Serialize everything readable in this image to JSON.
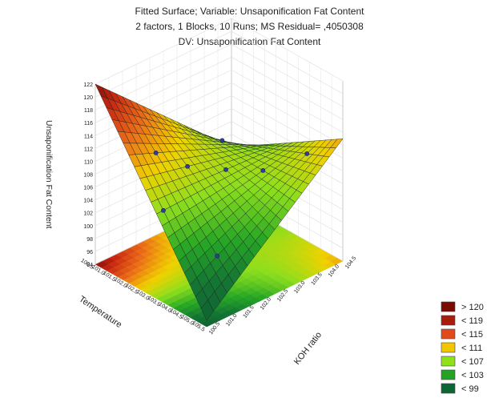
{
  "chart_data": {
    "type": "surface3d",
    "title_lines": [
      "Fitted Surface; Variable: Unsaponification Fat Content",
      "2 factors, 1 Blocks, 10 Runs; MS Residual= ,4050308",
      "DV: Unsaponification Fat Content"
    ],
    "zlabel": "Unsaponification Fat Content",
    "xlabel": "Temperature",
    "ylabel": "KOH ratio",
    "z_ticks": [
      "122",
      "120",
      "118",
      "116",
      "114",
      "112",
      "110",
      "108",
      "106",
      "104",
      "102",
      "100",
      "98",
      "96",
      "94"
    ],
    "x_ticks": [
      "100.5",
      "101.0",
      "101.5",
      "102.0",
      "102.5",
      "103.0",
      "103.5",
      "104.0",
      "104.5",
      "105.0",
      "105.5"
    ],
    "y_ticks": [
      "100.5",
      "101.0",
      "101.5",
      "102.0",
      "102.5",
      "103.0",
      "103.5",
      "104.0",
      "104.5"
    ],
    "x_range": [
      100.5,
      105.5
    ],
    "y_range": [
      100.5,
      104.5
    ],
    "z_range": [
      94,
      122
    ],
    "surface_corners": {
      "temp_high_koh_low": 122,
      "temp_low_koh_high": 113,
      "temp_high_koh_high": 102,
      "temp_low_koh_low": 95
    },
    "legend": [
      "> 120",
      "< 119",
      "< 115",
      "< 111",
      "< 107",
      "< 103",
      "< 99"
    ],
    "legend_colors": [
      "#7a0b00",
      "#a81c0b",
      "#e14a1a",
      "#f2c600",
      "#8fe21a",
      "#22a322",
      "#0e6434"
    ],
    "legend_position": "bottom-right",
    "grid": true
  }
}
